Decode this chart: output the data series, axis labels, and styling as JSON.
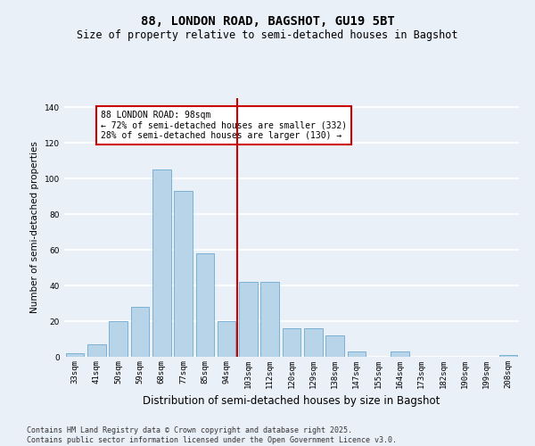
{
  "title": "88, LONDON ROAD, BAGSHOT, GU19 5BT",
  "subtitle": "Size of property relative to semi-detached houses in Bagshot",
  "xlabel": "Distribution of semi-detached houses by size in Bagshot",
  "ylabel": "Number of semi-detached properties",
  "categories": [
    "33sqm",
    "41sqm",
    "50sqm",
    "59sqm",
    "68sqm",
    "77sqm",
    "85sqm",
    "94sqm",
    "103sqm",
    "112sqm",
    "120sqm",
    "129sqm",
    "138sqm",
    "147sqm",
    "155sqm",
    "164sqm",
    "173sqm",
    "182sqm",
    "190sqm",
    "199sqm",
    "208sqm"
  ],
  "values": [
    2,
    7,
    20,
    28,
    105,
    93,
    58,
    20,
    42,
    42,
    16,
    16,
    12,
    3,
    0,
    3,
    0,
    0,
    0,
    0,
    1
  ],
  "bar_color": "#b8d4e8",
  "bar_edge_color": "#5a9ec9",
  "background_color": "#eaf0f8",
  "grid_color": "#ffffff",
  "vline_color": "#cc0000",
  "annotation_text": "88 LONDON ROAD: 98sqm\n← 72% of semi-detached houses are smaller (332)\n28% of semi-detached houses are larger (130) →",
  "annotation_box_color": "#cc0000",
  "ylim": [
    0,
    145
  ],
  "yticks": [
    0,
    20,
    40,
    60,
    80,
    100,
    120,
    140
  ],
  "footer_text": "Contains HM Land Registry data © Crown copyright and database right 2025.\nContains public sector information licensed under the Open Government Licence v3.0.",
  "title_fontsize": 10,
  "subtitle_fontsize": 8.5,
  "xlabel_fontsize": 8.5,
  "ylabel_fontsize": 7.5,
  "tick_fontsize": 6.5,
  "annotation_fontsize": 7,
  "footer_fontsize": 6
}
